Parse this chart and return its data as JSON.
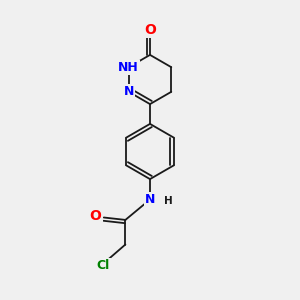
{
  "bg_color": "#f0f0f0",
  "bond_color": "#1a1a1a",
  "bond_width": 1.3,
  "atom_colors": {
    "O": "#ff0000",
    "N": "#0000ff",
    "Cl": "#008000",
    "C": "#1a1a1a",
    "H": "#1a1a1a"
  },
  "font_size_atoms": 9,
  "font_size_h": 7.5
}
